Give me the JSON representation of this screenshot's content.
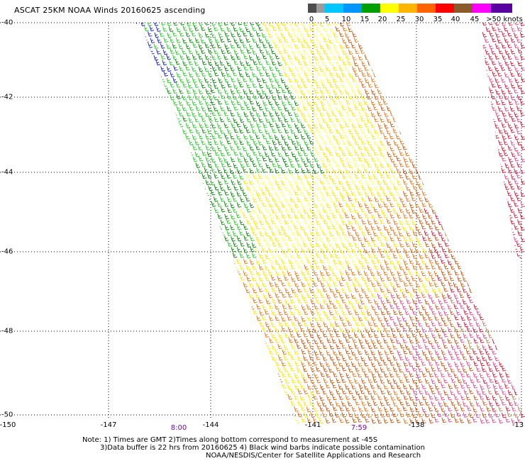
{
  "title": "ASCAT 25KM NOAA Winds 20160625 ascending",
  "legend": {
    "labels": [
      "0",
      "5",
      "10",
      "15",
      "20",
      "25",
      "30",
      "35",
      "40",
      "45",
      ">50 knots"
    ],
    "colors": [
      "#4d4d4d",
      "#9b9b9b",
      "#00c8ff",
      "#0096ff",
      "#00a000",
      "#ffff00",
      "#ffb400",
      "#ff6400",
      "#ff0000",
      "#8b5a2b",
      "#ff00ff",
      "#5a00a0"
    ]
  },
  "map": {
    "lat_labels": [
      "-40",
      "-42",
      "-44",
      "-46",
      "-48",
      "-50"
    ],
    "lon_labels": [
      "-150",
      "-147",
      "-144",
      "-141",
      "-138",
      "-13"
    ],
    "time_labels": [
      "8:00",
      "7:59"
    ],
    "swath_colors": {
      "blue": "#1e2ac8",
      "green": "#2ccc2c",
      "dark_green": "#128a12",
      "yellow": "#ffe600",
      "light_yellow": "#ffff66",
      "orange": "#e8781e",
      "dark_orange": "#c85a14",
      "red": "#d21e3c",
      "pink": "#e0508c",
      "brown": "#b48c5a"
    }
  },
  "notes": {
    "line1": "Note: 1) Times are GMT 2)Times along bottom correspond to measurement at -45S",
    "line2": "3)Data buffer is 22 hrs from 20160625 4) Black wind barbs indicate possible contamination",
    "line3": "NOAA/NESDIS/Center for Satellite Applications and Research"
  }
}
